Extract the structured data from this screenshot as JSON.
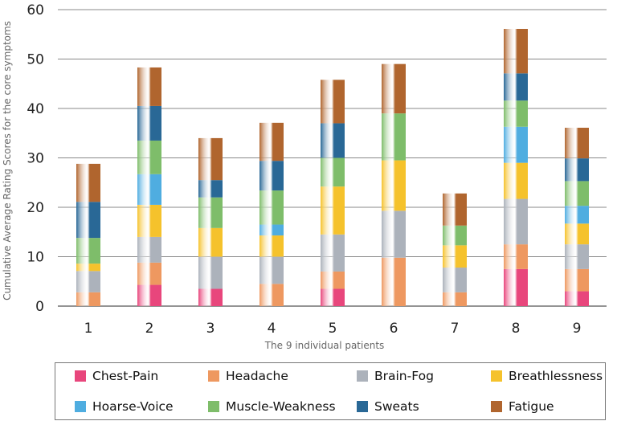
{
  "chart_data": {
    "type": "bar",
    "stacked": true,
    "categories": [
      "1",
      "2",
      "3",
      "4",
      "5",
      "6",
      "7",
      "8",
      "9"
    ],
    "xlabel": "The 9 individual patients",
    "ylabel": "Cumulative Average Rating Scores for the core symptoms",
    "ylim": [
      0,
      60
    ],
    "yticks": [
      0,
      10,
      20,
      30,
      40,
      50,
      60
    ],
    "grid": true,
    "legend_position": "bottom",
    "series": [
      {
        "name": "Chest-Pain",
        "color": "#e8467c",
        "values": [
          0,
          4.3,
          3.5,
          0,
          3.5,
          0,
          0,
          7.5,
          3
        ]
      },
      {
        "name": "Headache",
        "color": "#ee9860",
        "values": [
          2.8,
          4.5,
          0,
          4.5,
          3.5,
          9.8,
          2.8,
          5,
          4.5
        ]
      },
      {
        "name": "Brain-Fog",
        "color": "#acb2bb",
        "values": [
          4.3,
          5.2,
          6.5,
          5.5,
          7.5,
          9.5,
          5,
          9.2,
          5
        ]
      },
      {
        "name": "Breathlessness",
        "color": "#f5c22c",
        "values": [
          1.5,
          6.5,
          5.8,
          4.3,
          9.7,
          10.2,
          4.5,
          7.3,
          4.2
        ]
      },
      {
        "name": "Hoarse-Voice",
        "color": "#4fade0",
        "values": [
          0,
          6.2,
          0,
          2.2,
          0,
          0,
          0,
          7.3,
          3.6
        ]
      },
      {
        "name": "Muscle-Weakness",
        "color": "#7ebd6a",
        "values": [
          5.2,
          6.8,
          6.2,
          6.9,
          5.8,
          9.5,
          4,
          5.3,
          5
        ]
      },
      {
        "name": "Sweats",
        "color": "#296896",
        "values": [
          7.3,
          7,
          3.5,
          6,
          7,
          0,
          0,
          5.5,
          4.6
        ]
      },
      {
        "name": "Fatigue",
        "color": "#b0652e",
        "values": [
          7.7,
          7.8,
          8.5,
          7.7,
          8.8,
          10,
          6.5,
          9,
          6.2
        ]
      }
    ]
  }
}
